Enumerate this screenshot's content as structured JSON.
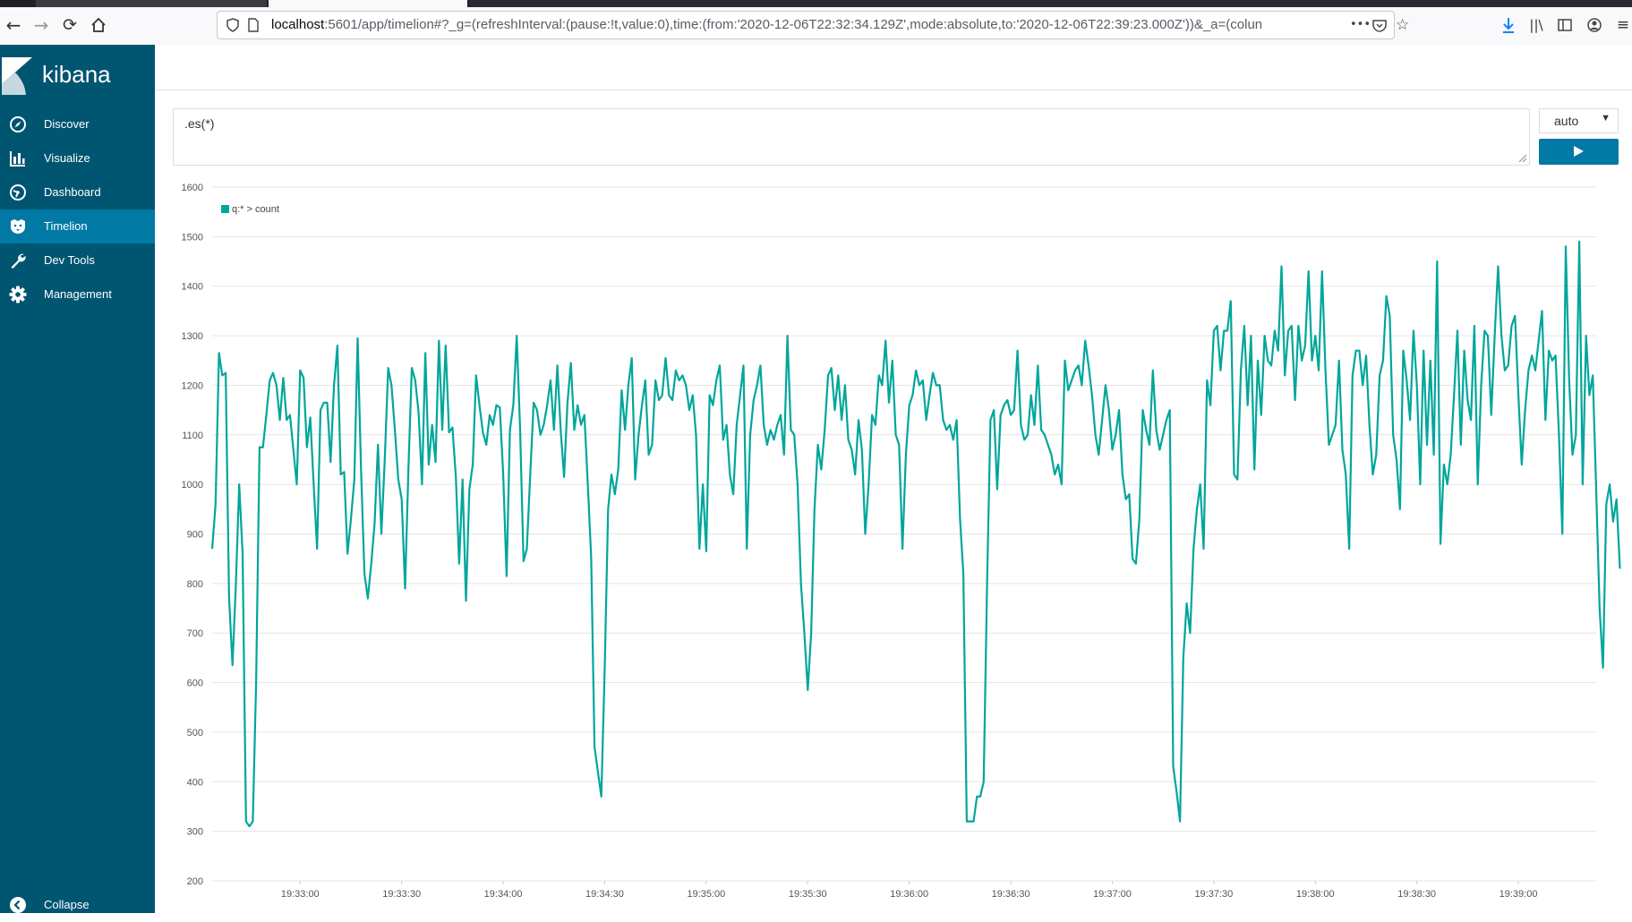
{
  "browser": {
    "url_host": "localhost",
    "url_rest": ":5601/app/timelion#?_g=(refreshInterval:(pause:!t,value:0),time:(from:'2020-12-06T22:32:34.129Z',mode:absolute,to:'2020-12-06T22:39:23.000Z'))&_a=(colun",
    "more_label": "•••"
  },
  "app": {
    "logo_text": "kibana"
  },
  "sidebar": {
    "items": [
      {
        "label": "Discover",
        "icon": "compass-icon"
      },
      {
        "label": "Visualize",
        "icon": "bar-chart-icon"
      },
      {
        "label": "Dashboard",
        "icon": "dashboard-icon"
      },
      {
        "label": "Timelion",
        "icon": "timelion-icon",
        "active": true
      },
      {
        "label": "Dev Tools",
        "icon": "wrench-icon"
      },
      {
        "label": "Management",
        "icon": "gear-icon"
      }
    ],
    "collapse_label": "Collapse"
  },
  "timelion": {
    "expression": ".es(*)",
    "interval": "auto"
  },
  "colors": {
    "sidebar": "#005571",
    "active": "#0079a5",
    "series": "#00a69b"
  },
  "chart_data": {
    "type": "line",
    "ylim": [
      200,
      1600
    ],
    "yticks": [
      200,
      300,
      400,
      500,
      600,
      700,
      800,
      900,
      1000,
      1100,
      1200,
      1300,
      1400,
      1500,
      1600
    ],
    "xrange": [
      "19:32:34",
      "19:39:23"
    ],
    "xticks": [
      "19:33:00",
      "19:33:30",
      "19:34:00",
      "19:34:30",
      "19:35:00",
      "19:35:30",
      "19:36:00",
      "19:36:30",
      "19:37:00",
      "19:37:30",
      "19:38:00",
      "19:38:30",
      "19:39:00"
    ],
    "grid": true,
    "legend_position": "top-left",
    "series": [
      {
        "name": "q:* > count",
        "x_start": "19:32:34",
        "step_seconds": 1,
        "values": [
          870,
          960,
          1265,
          1220,
          1225,
          770,
          635,
          800,
          1000,
          860,
          320,
          310,
          320,
          600,
          1075,
          1075,
          1140,
          1210,
          1225,
          1200,
          1130,
          1215,
          1130,
          1140,
          1070,
          1000,
          1230,
          1215,
          1075,
          1135,
          1000,
          870,
          1150,
          1165,
          1165,
          1045,
          1200,
          1280,
          1020,
          1025,
          860,
          930,
          1010,
          1295,
          1030,
          820,
          770,
          840,
          920,
          1080,
          900,
          1050,
          1235,
          1200,
          1110,
          1010,
          970,
          790,
          1030,
          1235,
          1210,
          1145,
          1000,
          1265,
          1040,
          1120,
          1045,
          1290,
          1110,
          1280,
          1105,
          1115,
          1015,
          840,
          1010,
          765,
          990,
          1040,
          1220,
          1160,
          1105,
          1080,
          1140,
          1120,
          1160,
          1155,
          1020,
          815,
          1110,
          1160,
          1300,
          1110,
          845,
          870,
          1020,
          1165,
          1150,
          1100,
          1120,
          1160,
          1210,
          1110,
          1240,
          1110,
          1015,
          1165,
          1245,
          1110,
          1160,
          1120,
          1140,
          1000,
          850,
          470,
          420,
          370,
          630,
          950,
          1020,
          980,
          1030,
          1190,
          1110,
          1200,
          1255,
          1010,
          1100,
          1160,
          1210,
          1060,
          1080,
          1210,
          1170,
          1180,
          1255,
          1180,
          1170,
          1230,
          1210,
          1220,
          1200,
          1150,
          1180,
          1100,
          870,
          1000,
          865,
          1180,
          1160,
          1210,
          1240,
          1090,
          1120,
          1020,
          980,
          1120,
          1180,
          1240,
          870,
          1100,
          1170,
          1200,
          1240,
          1120,
          1080,
          1110,
          1090,
          1120,
          1140,
          1060,
          1300,
          1110,
          1100,
          1000,
          800,
          700,
          585,
          700,
          950,
          1080,
          1030,
          1110,
          1220,
          1235,
          1150,
          1220,
          1130,
          1200,
          1090,
          1070,
          1020,
          1130,
          1070,
          900,
          1000,
          1140,
          1120,
          1220,
          1200,
          1290,
          1165,
          1250,
          1100,
          1080,
          870,
          1060,
          1160,
          1180,
          1230,
          1200,
          1210,
          1130,
          1180,
          1225,
          1200,
          1200,
          1130,
          1110,
          1120,
          1090,
          1130,
          930,
          820,
          320,
          320,
          320,
          370,
          370,
          400,
          800,
          1130,
          1150,
          990,
          1140,
          1160,
          1170,
          1140,
          1150,
          1270,
          1120,
          1090,
          1100,
          1180,
          1120,
          1240,
          1110,
          1100,
          1080,
          1060,
          1020,
          1040,
          1000,
          1250,
          1190,
          1210,
          1230,
          1240,
          1200,
          1290,
          1240,
          1180,
          1100,
          1060,
          1130,
          1200,
          1150,
          1070,
          1100,
          1150,
          1020,
          970,
          980,
          850,
          840,
          930,
          1150,
          1110,
          1080,
          1230,
          1110,
          1070,
          1100,
          1130,
          1150,
          430,
          380,
          320,
          650,
          760,
          700,
          870,
          950,
          1000,
          870,
          1210,
          1160,
          1310,
          1320,
          1230,
          1310,
          1310,
          1370,
          1020,
          1010,
          1230,
          1320,
          1160,
          1300,
          1030,
          1250,
          1140,
          1300,
          1250,
          1240,
          1310,
          1270,
          1440,
          1220,
          1310,
          1320,
          1170,
          1320,
          1250,
          1280,
          1430,
          1250,
          1300,
          1230,
          1430,
          1230,
          1080,
          1100,
          1120,
          1250,
          1070,
          1020,
          870,
          1220,
          1270,
          1270,
          1200,
          1260,
          1120,
          1020,
          1060,
          1220,
          1250,
          1380,
          1340,
          1100,
          1050,
          950,
          1270,
          1210,
          1130,
          1310,
          1200,
          1000,
          1270,
          1080,
          1250,
          1060,
          1450,
          880,
          1040,
          1000,
          1060,
          1180,
          1310,
          1080,
          1270,
          1170,
          1130,
          1320,
          1000,
          1200,
          1310,
          1300,
          1140,
          1300,
          1440,
          1300,
          1230,
          1240,
          1320,
          1340,
          1180,
          1040,
          1150,
          1230,
          1260,
          1230,
          1290,
          1350,
          1130,
          1270,
          1250,
          1260,
          1100,
          900,
          1480,
          1210,
          1060,
          1100,
          1490,
          1000,
          1300,
          1180,
          1220,
          990,
          750,
          630,
          960,
          1000,
          925,
          970,
          830
        ]
      }
    ]
  }
}
